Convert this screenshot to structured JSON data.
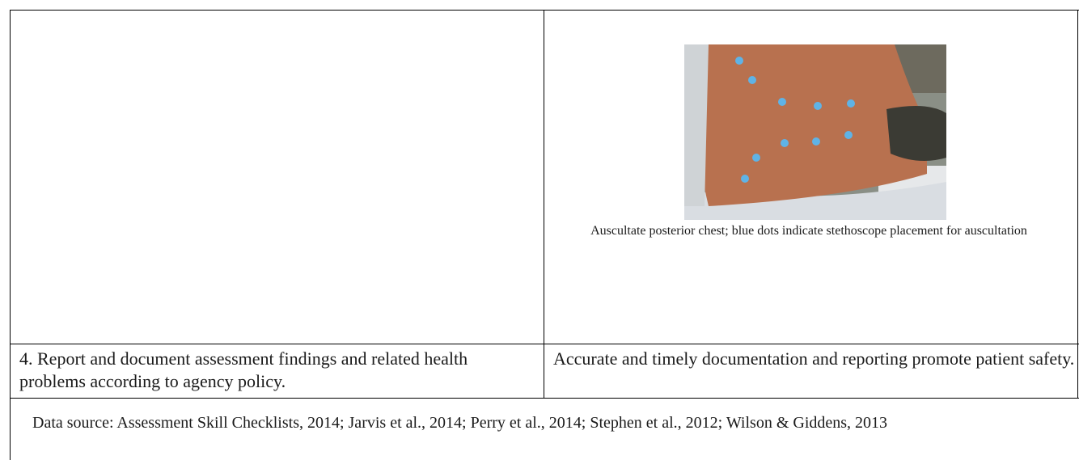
{
  "image_caption": "Auscultate posterior chest; blue dots indicate stethoscope placement for auscultation",
  "rows": [
    [
      "4. Report and document assessment findings and related health problems according to agency policy.",
      "Accurate and timely documentation and reporting promote patient safety."
    ]
  ],
  "footer": "Data source: Assessment Skill Checklists, 2014; Jarvis et al., 2014; Perry et al., 2014; Stephen et al., 2012; Wilson & Giddens, 2013"
}
